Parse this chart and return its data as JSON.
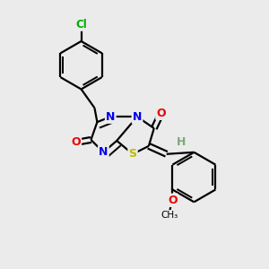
{
  "bg_color": "#ebebeb",
  "atom_colors": {
    "C": "#000000",
    "N": "#0000ee",
    "O": "#ee0000",
    "S": "#bbbb00",
    "Cl": "#00aa00",
    "H": "#7aaa7a"
  },
  "bond_color": "#000000",
  "bond_width": 1.6,
  "figsize": [
    3.0,
    3.0
  ],
  "dpi": 100
}
